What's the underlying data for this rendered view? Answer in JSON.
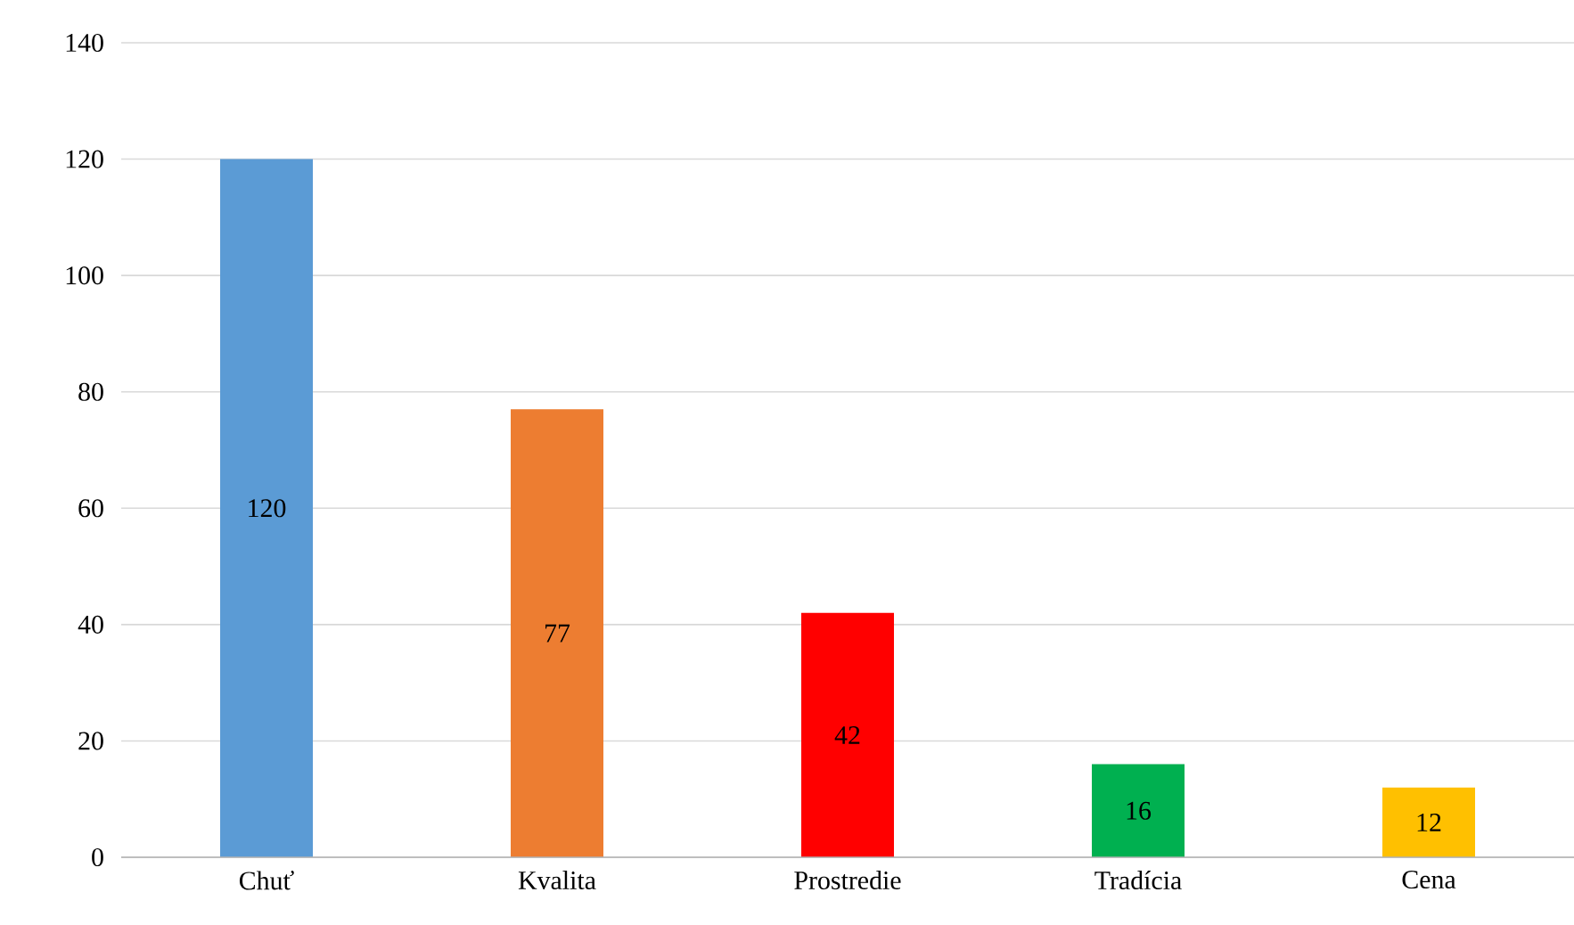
{
  "chart_data": {
    "type": "bar",
    "categories": [
      "Chuť",
      "Kvalita",
      "Prostredie",
      "Tradícia",
      "Cena"
    ],
    "values": [
      120,
      77,
      42,
      16,
      12
    ],
    "colors": [
      "#5b9bd5",
      "#ed7d31",
      "#ff0000",
      "#00b050",
      "#ffc000"
    ],
    "ylim": [
      0,
      140
    ],
    "yticks": [
      0,
      20,
      40,
      60,
      80,
      100,
      120,
      140
    ],
    "grid": "y",
    "data_labels": true
  }
}
